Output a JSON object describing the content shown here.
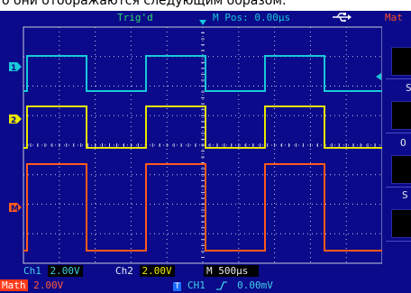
{
  "caption": {
    "text": "о они отображаются следующим образом:"
  },
  "status": {
    "trigger_state": "Trig'd",
    "mpos": "M Pos: 0.00µs",
    "usb_icon": "usb-icon"
  },
  "right_panel": {
    "title": "Mat",
    "labels": [
      "S",
      "O",
      "S"
    ]
  },
  "channels": {
    "ch1": {
      "label": "Ch1",
      "scale": "2.00V",
      "color": "#18c8d8",
      "marker": "1"
    },
    "ch2": {
      "label": "Ch2",
      "scale": "2.00V",
      "color": "#e8e800",
      "marker": "2"
    },
    "math": {
      "label": "Math",
      "scale": "2.00V",
      "color": "#ff5a1a",
      "marker": "M"
    }
  },
  "timebase": {
    "label": "M",
    "value": "500µs"
  },
  "trigger": {
    "source": "CH1",
    "slope_icon": "rising-edge-icon",
    "level": "0.00mV"
  },
  "colors": {
    "screen_bg": "#0a0a8a",
    "grid": "#c8c8e0"
  }
}
